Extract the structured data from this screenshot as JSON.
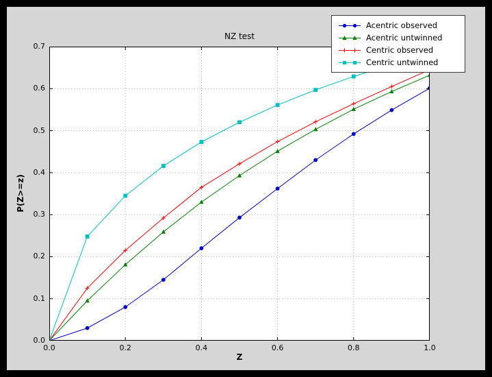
{
  "colors": {
    "figure_background": "#d6d6d6",
    "plot_background": "#ffffff",
    "grid": "#b3b3b3",
    "axes_border": "#000000"
  },
  "chart_data": {
    "type": "line",
    "title": "NZ test",
    "xlabel": "Z",
    "ylabel": "P(Z>=z)",
    "xlim": [
      0.0,
      1.0
    ],
    "ylim": [
      0.0,
      0.7
    ],
    "xticks": [
      "0.0",
      "0.2",
      "0.4",
      "0.6",
      "0.8",
      "1.0"
    ],
    "yticks": [
      "0.0",
      "0.1",
      "0.2",
      "0.3",
      "0.4",
      "0.5",
      "0.6",
      "0.7"
    ],
    "grid": true,
    "legend_position": "upper right",
    "x": [
      0.0,
      0.1,
      0.2,
      0.3,
      0.4,
      0.5,
      0.6,
      0.7,
      0.8,
      0.9,
      1.0
    ],
    "series": [
      {
        "name": "Acentric observed",
        "color": "#0000cc",
        "marker": "circle",
        "values": [
          0.0,
          0.03,
          0.08,
          0.145,
          0.22,
          0.293,
          0.362,
          0.43,
          0.492,
          0.549,
          0.601
        ]
      },
      {
        "name": "Acentric untwinned",
        "color": "#007f00",
        "marker": "triangle_up",
        "values": [
          0.0,
          0.095,
          0.181,
          0.259,
          0.33,
          0.393,
          0.451,
          0.503,
          0.551,
          0.593,
          0.632
        ]
      },
      {
        "name": "Centric observed",
        "color": "#ff0000",
        "marker": "plus",
        "values": [
          0.0,
          0.125,
          0.215,
          0.292,
          0.365,
          0.421,
          0.474,
          0.521,
          0.564,
          0.605,
          0.645
        ]
      },
      {
        "name": "Centric untwinned",
        "color": "#00bfbf",
        "marker": "square",
        "values": [
          0.0,
          0.248,
          0.345,
          0.416,
          0.473,
          0.52,
          0.561,
          0.597,
          0.629,
          0.657,
          0.683
        ]
      }
    ]
  }
}
